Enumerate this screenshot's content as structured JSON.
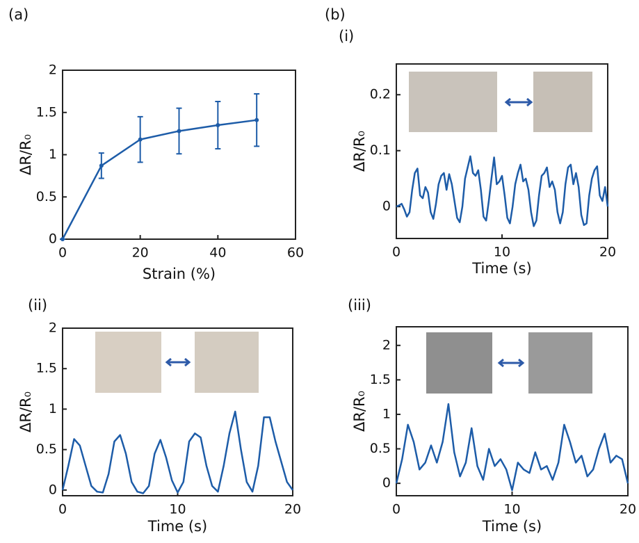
{
  "chart_data": [
    {
      "type": "line",
      "panel_label": "(a)",
      "xlabel": "Strain (%)",
      "ylabel": "ΔR/R₀",
      "color": "#1d5ca8",
      "markers": true,
      "x": [
        0,
        10,
        20,
        30,
        40,
        50
      ],
      "values": [
        0,
        0.87,
        1.18,
        1.28,
        1.35,
        1.41
      ],
      "errors": [
        0,
        0.15,
        0.27,
        0.27,
        0.28,
        0.31
      ],
      "xlim": [
        0,
        60
      ],
      "xticks": [
        0,
        20,
        40,
        60
      ],
      "ylim": [
        0,
        2
      ],
      "yticks": [
        0,
        0.5,
        1,
        1.5,
        2
      ]
    },
    {
      "type": "line",
      "group_label": "(b)",
      "panel_label": "(i)",
      "xlabel": "Time (s)",
      "ylabel": "ΔR/R₀",
      "color": "#1d5ca8",
      "x": [
        0,
        0.25,
        0.5,
        0.75,
        1,
        1.25,
        1.5,
        1.75,
        2,
        2.25,
        2.5,
        2.75,
        3,
        3.25,
        3.5,
        3.75,
        4,
        4.25,
        4.5,
        4.75,
        5,
        5.25,
        5.5,
        5.75,
        6,
        6.25,
        6.5,
        6.75,
        7,
        7.25,
        7.5,
        7.75,
        8,
        8.25,
        8.5,
        8.75,
        9,
        9.25,
        9.5,
        9.75,
        10,
        10.25,
        10.5,
        10.75,
        11,
        11.25,
        11.5,
        11.75,
        12,
        12.25,
        12.5,
        12.75,
        13,
        13.25,
        13.5,
        13.75,
        14,
        14.25,
        14.5,
        14.75,
        15,
        15.25,
        15.5,
        15.75,
        16,
        16.25,
        16.5,
        16.75,
        17,
        17.25,
        17.5,
        17.75,
        18,
        18.25,
        18.5,
        18.75,
        19,
        19.25,
        19.5,
        19.75,
        20
      ],
      "values": [
        0,
        0.002,
        0.005,
        -0.005,
        -0.018,
        -0.01,
        0.03,
        0.06,
        0.068,
        0.02,
        0.015,
        0.035,
        0.025,
        -0.01,
        -0.022,
        0.005,
        0.04,
        0.055,
        0.06,
        0.03,
        0.058,
        0.04,
        0.01,
        -0.02,
        -0.028,
        0,
        0.05,
        0.07,
        0.09,
        0.06,
        0.055,
        0.065,
        0.03,
        -0.018,
        -0.025,
        0.01,
        0.05,
        0.088,
        0.04,
        0.045,
        0.055,
        0.02,
        -0.02,
        -0.03,
        0,
        0.04,
        0.06,
        0.075,
        0.045,
        0.05,
        0.03,
        -0.01,
        -0.035,
        -0.025,
        0.02,
        0.055,
        0.06,
        0.07,
        0.035,
        0.045,
        0.03,
        -0.01,
        -0.03,
        -0.01,
        0.04,
        0.07,
        0.075,
        0.04,
        0.06,
        0.035,
        -0.015,
        -0.033,
        -0.03,
        0.02,
        0.05,
        0.065,
        0.072,
        0.02,
        0.01,
        0.035,
        0
      ],
      "xlim": [
        0,
        20
      ],
      "xticks": [
        0,
        10,
        20
      ],
      "ylim": [
        -0.057,
        0.255
      ],
      "yticks": [
        0,
        0.1,
        0.2
      ]
    },
    {
      "type": "line",
      "panel_label": "(ii)",
      "xlabel": "Time (s)",
      "ylabel": "ΔR/R₀",
      "color": "#1d5ca8",
      "x": [
        0,
        0.5,
        1,
        1.5,
        2,
        2.5,
        3,
        3.5,
        4,
        4.5,
        5,
        5.5,
        6,
        6.5,
        7,
        7.5,
        8,
        8.5,
        9,
        9.5,
        10,
        10.5,
        11,
        11.5,
        12,
        12.5,
        13,
        13.5,
        14,
        14.5,
        15,
        15.5,
        16,
        16.5,
        17,
        17.5,
        18,
        18.5,
        19,
        19.5,
        20
      ],
      "values": [
        0,
        0.3,
        0.63,
        0.55,
        0.3,
        0.05,
        -0.02,
        -0.03,
        0.2,
        0.6,
        0.68,
        0.45,
        0.1,
        -0.02,
        -0.04,
        0.05,
        0.45,
        0.62,
        0.4,
        0.12,
        -0.03,
        0.1,
        0.6,
        0.7,
        0.65,
        0.3,
        0.05,
        -0.02,
        0.3,
        0.7,
        0.97,
        0.5,
        0.1,
        -0.02,
        0.3,
        0.9,
        0.9,
        0.6,
        0.35,
        0.1,
        0
      ],
      "xlim": [
        0,
        20
      ],
      "xticks": [
        0,
        10,
        20
      ],
      "ylim": [
        -0.07,
        2
      ],
      "yticks": [
        0,
        0.5,
        1,
        1.5,
        2
      ]
    },
    {
      "type": "line",
      "panel_label": "(iii)",
      "xlabel": "Time (s)",
      "ylabel": "ΔR/R₀",
      "color": "#1d5ca8",
      "x": [
        0,
        0.5,
        1,
        1.5,
        2,
        2.5,
        3,
        3.5,
        4,
        4.5,
        5,
        5.5,
        6,
        6.5,
        7,
        7.5,
        8,
        8.5,
        9,
        9.5,
        10,
        10.5,
        11,
        11.5,
        12,
        12.5,
        13,
        13.5,
        14,
        14.5,
        15,
        15.5,
        16,
        16.5,
        17,
        17.5,
        18,
        18.5,
        19,
        19.5,
        20
      ],
      "values": [
        0,
        0.35,
        0.85,
        0.6,
        0.2,
        0.3,
        0.55,
        0.3,
        0.6,
        1.15,
        0.45,
        0.1,
        0.3,
        0.8,
        0.25,
        0.05,
        0.5,
        0.25,
        0.35,
        0.2,
        -0.1,
        0.3,
        0.2,
        0.15,
        0.45,
        0.2,
        0.25,
        0.05,
        0.3,
        0.85,
        0.6,
        0.3,
        0.4,
        0.1,
        0.2,
        0.5,
        0.72,
        0.3,
        0.4,
        0.35,
        0
      ],
      "xlim": [
        0,
        20
      ],
      "xticks": [
        0,
        10,
        20
      ],
      "ylim": [
        -0.18,
        2.27
      ],
      "yticks": [
        0,
        0.5,
        1,
        1.5,
        2
      ]
    }
  ]
}
